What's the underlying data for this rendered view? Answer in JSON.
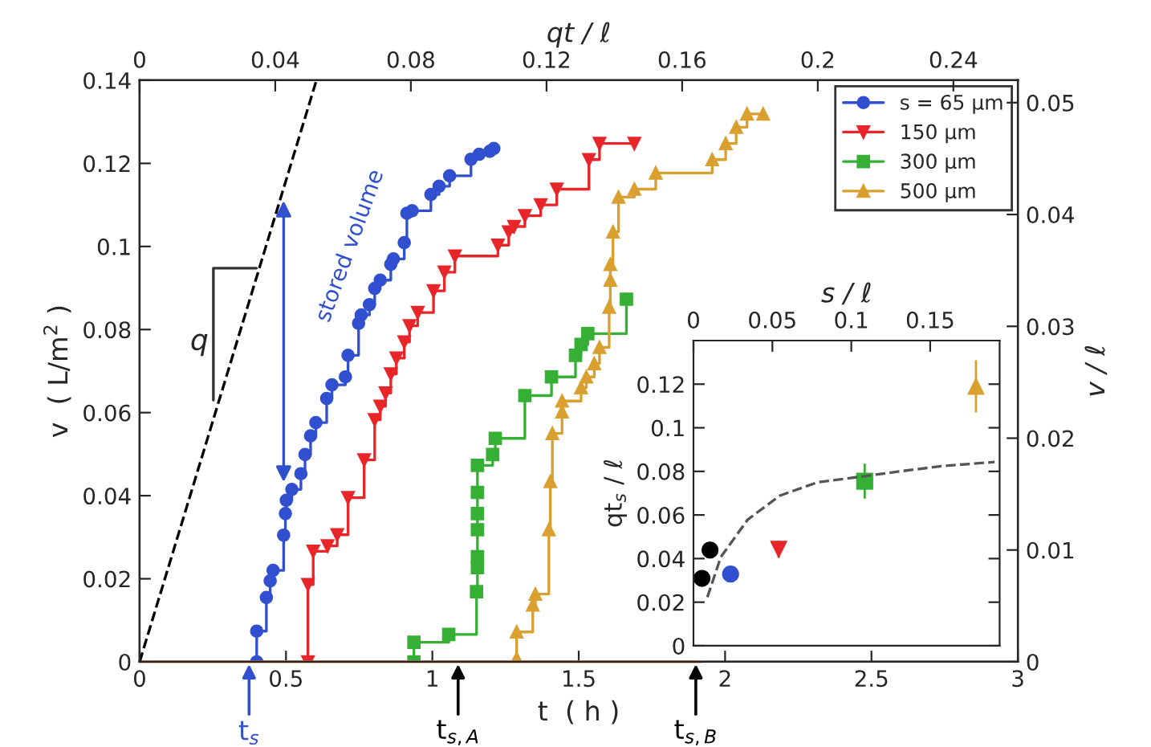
{
  "chart_data": [
    {
      "type": "step",
      "xlabel": "t  ( h )",
      "ylabel": "v  ( L/m$^{2}$ )",
      "x2label": "qt / ℓ",
      "y2label": "v / ℓ",
      "xlim": [
        0,
        3
      ],
      "xticks": [
        0,
        0.5,
        1,
        1.5,
        2,
        2.5,
        3
      ],
      "ylim": [
        0,
        0.14
      ],
      "yticks": [
        0,
        0.02,
        0.04,
        0.06,
        0.08,
        0.1,
        0.12,
        0.14
      ],
      "x2lim": [
        0,
        0.259
      ],
      "x2ticks": [
        0,
        0.04,
        0.08,
        0.12,
        0.16,
        0.2,
        0.24
      ],
      "y2lim": [
        0,
        0.052
      ],
      "y2ticks": [
        0,
        0.01,
        0.02,
        0.03,
        0.04,
        0.05
      ],
      "grid": false,
      "legend": "top right",
      "series": [
        {
          "name": "s = 65 μm",
          "color": "#3050d0",
          "marker": "circle",
          "x": [
            0.4,
            0.4,
            0.433,
            0.446,
            0.456,
            0.492,
            0.498,
            0.501,
            0.52,
            0.551,
            0.565,
            0.584,
            0.602,
            0.639,
            0.657,
            0.703,
            0.712,
            0.748,
            0.757,
            0.785,
            0.803,
            0.822,
            0.858,
            0.867,
            0.904,
            0.913,
            0.931,
            0.995,
            1.023,
            1.059,
            1.132,
            1.16,
            1.196,
            1.21
          ],
          "values": [
            0,
            0.0074,
            0.0155,
            0.0195,
            0.022,
            0.0305,
            0.0357,
            0.0389,
            0.0415,
            0.0453,
            0.0499,
            0.0544,
            0.0576,
            0.0634,
            0.0667,
            0.0686,
            0.0738,
            0.0815,
            0.0835,
            0.086,
            0.0899,
            0.0919,
            0.0957,
            0.097,
            0.1009,
            0.108,
            0.1086,
            0.1125,
            0.1145,
            0.117,
            0.121,
            0.1222,
            0.1229,
            0.1236
          ]
        },
        {
          "name": "150 μm",
          "color": "#e8262a",
          "marker": "triangle_down",
          "x": [
            0.575,
            0.575,
            0.593,
            0.642,
            0.675,
            0.712,
            0.767,
            0.803,
            0.822,
            0.84,
            0.858,
            0.877,
            0.904,
            0.922,
            0.95,
            1.004,
            1.041,
            1.077,
            1.224,
            1.261,
            1.279,
            1.316,
            1.37,
            1.425,
            1.535,
            1.571,
            1.69
          ],
          "values": [
            0,
            0.0186,
            0.0266,
            0.0279,
            0.0306,
            0.0395,
            0.0486,
            0.0583,
            0.0615,
            0.0647,
            0.0693,
            0.0731,
            0.077,
            0.0809,
            0.0841,
            0.0893,
            0.0938,
            0.0977,
            0.1003,
            0.1035,
            0.1048,
            0.1074,
            0.11,
            0.1138,
            0.1209,
            0.1248,
            0.1248
          ]
        },
        {
          "name": "300 μm",
          "color": "#35b035",
          "marker": "square",
          "x": [
            0.937,
            0.937,
            1.056,
            1.151,
            1.154,
            1.154,
            1.154,
            1.154,
            1.154,
            1.154,
            1.206,
            1.215,
            1.316,
            1.407,
            1.489,
            1.508,
            1.531,
            1.663
          ],
          "values": [
            0,
            0.0047,
            0.0066,
            0.0169,
            0.0227,
            0.0253,
            0.0318,
            0.0357,
            0.0408,
            0.0473,
            0.0499,
            0.0538,
            0.0641,
            0.0686,
            0.0738,
            0.0764,
            0.079,
            0.0873
          ]
        },
        {
          "name": "500 μm",
          "color": "#d9a030",
          "marker": "triangle",
          "x": [
            1.288,
            1.288,
            1.343,
            1.352,
            1.398,
            1.403,
            1.41,
            1.443,
            1.443,
            1.508,
            1.526,
            1.553,
            1.571,
            1.604,
            1.608,
            1.608,
            1.617,
            1.636,
            1.69,
            1.763,
            1.956,
            2.002,
            2.038,
            2.075,
            2.13
          ],
          "values": [
            0.0008,
            0.0072,
            0.0137,
            0.0163,
            0.0318,
            0.0434,
            0.055,
            0.0602,
            0.0628,
            0.066,
            0.0686,
            0.0718,
            0.0757,
            0.0854,
            0.0919,
            0.0957,
            0.1035,
            0.1119,
            0.1138,
            0.1177,
            0.1209,
            0.1248,
            0.1287,
            0.1319,
            0.1319
          ]
        },
        {
          "type": "line",
          "color": "#f4a582",
          "x": [
            0,
            1.92
          ],
          "values": [
            0,
            0
          ]
        },
        {
          "type": "line",
          "color": "#000000",
          "line_style": "dashed",
          "x": [
            0,
            0.604
          ],
          "values": [
            0,
            0.14
          ]
        }
      ],
      "annotations": [
        "stored volume",
        "q",
        {
          "text": "t$_{s}$",
          "x": 0.374,
          "y": 0
        },
        {
          "text": "t$_{s,A}$",
          "x": 1.088,
          "y": 0
        },
        {
          "text": "t$_{s,B}$",
          "x": 1.9,
          "y": 0
        }
      ]
    },
    {
      "type": "scatter",
      "ylabel": "qt$_{s}$ / ℓ",
      "xlabel": "s / ℓ",
      "xlim": [
        0,
        0.194
      ],
      "xticks": [
        0,
        0.05,
        0.1,
        0.15
      ],
      "ylim": [
        0,
        0.14
      ],
      "yticks": [
        0,
        0.02,
        0.04,
        0.06,
        0.08,
        0.1,
        0.12
      ],
      "grid": false,
      "series": [
        {
          "color": "#000000",
          "marker": "circle",
          "x": [
            0.0054,
            0.0105
          ],
          "values": [
            0.0309,
            0.0439
          ],
          "errors": [
            0.003,
            0.003
          ]
        },
        {
          "color": "#3050d0",
          "marker": "circle",
          "x": [
            0.0235
          ],
          "values": [
            0.0329
          ]
        },
        {
          "color": "#e8262a",
          "marker": "triangle_down",
          "x": [
            0.054
          ],
          "values": [
            0.0443
          ],
          "errors": [
            0.004
          ]
        },
        {
          "color": "#35b035",
          "marker": "square",
          "x": [
            0.1085
          ],
          "values": [
            0.0755
          ],
          "errors": [
            0.008
          ],
          "xerrors": [
            0.003
          ]
        },
        {
          "color": "#d9a030",
          "marker": "triangle",
          "x": [
            0.179
          ],
          "values": [
            0.119
          ],
          "errors": [
            0.012
          ]
        },
        {
          "type": "line",
          "color": "#555555",
          "line_style": "dashed",
          "x": [
            0.0088,
            0.0173,
            0.0344,
            0.0548,
            0.0786,
            0.1085,
            0.1296,
            0.157,
            0.1908
          ],
          "values": [
            0.0223,
            0.0407,
            0.0579,
            0.0689,
            0.075,
            0.0778,
            0.0799,
            0.0824,
            0.0843
          ]
        }
      ]
    }
  ]
}
